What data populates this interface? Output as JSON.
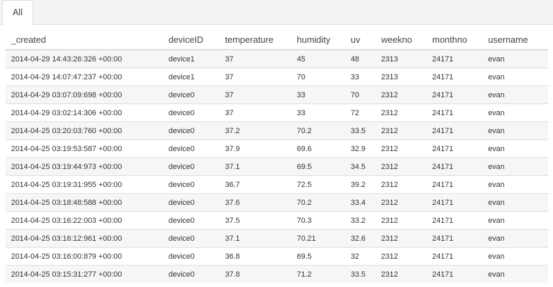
{
  "tabs": [
    {
      "label": "All"
    }
  ],
  "table": {
    "columns": [
      "_created",
      "deviceID",
      "temperature",
      "humidity",
      "uv",
      "weekno",
      "monthno",
      "username"
    ],
    "rows": [
      [
        "2014-04-29 14:43:26:326 +00:00",
        "device1",
        "37",
        "45",
        "48",
        "2313",
        "24171",
        "evan"
      ],
      [
        "2014-04-29 14:07:47:237 +00:00",
        "device1",
        "37",
        "70",
        "33",
        "2313",
        "24171",
        "evan"
      ],
      [
        "2014-04-29 03:07:09:698 +00:00",
        "device0",
        "37",
        "33",
        "70",
        "2312",
        "24171",
        "evan"
      ],
      [
        "2014-04-29 03:02:14:306 +00:00",
        "device0",
        "37",
        "33",
        "72",
        "2312",
        "24171",
        "evan"
      ],
      [
        "2014-04-25 03:20:03:760 +00:00",
        "device0",
        "37.2",
        "70.2",
        "33.5",
        "2312",
        "24171",
        "evan"
      ],
      [
        "2014-04-25 03:19:53:587 +00:00",
        "device0",
        "37.9",
        "69.6",
        "32.9",
        "2312",
        "24171",
        "evan"
      ],
      [
        "2014-04-25 03:19:44:973 +00:00",
        "device0",
        "37.1",
        "69.5",
        "34.5",
        "2312",
        "24171",
        "evan"
      ],
      [
        "2014-04-25 03:19:31:955 +00:00",
        "device0",
        "36.7",
        "72.5",
        "39.2",
        "2312",
        "24171",
        "evan"
      ],
      [
        "2014-04-25 03:18:48:588 +00:00",
        "device0",
        "37.6",
        "70.2",
        "33.4",
        "2312",
        "24171",
        "evan"
      ],
      [
        "2014-04-25 03:16:22:003 +00:00",
        "device0",
        "37.5",
        "70.3",
        "33.2",
        "2312",
        "24171",
        "evan"
      ],
      [
        "2014-04-25 03:16:12:961 +00:00",
        "device0",
        "37.1",
        "70.21",
        "32.6",
        "2312",
        "24171",
        "evan"
      ],
      [
        "2014-04-25 03:16:00:879 +00:00",
        "device0",
        "36.8",
        "69.5",
        "32",
        "2312",
        "24171",
        "evan"
      ],
      [
        "2014-04-25 03:15:31:277 +00:00",
        "device0",
        "37.8",
        "71.2",
        "33.5",
        "2312",
        "24171",
        "evan"
      ]
    ]
  }
}
